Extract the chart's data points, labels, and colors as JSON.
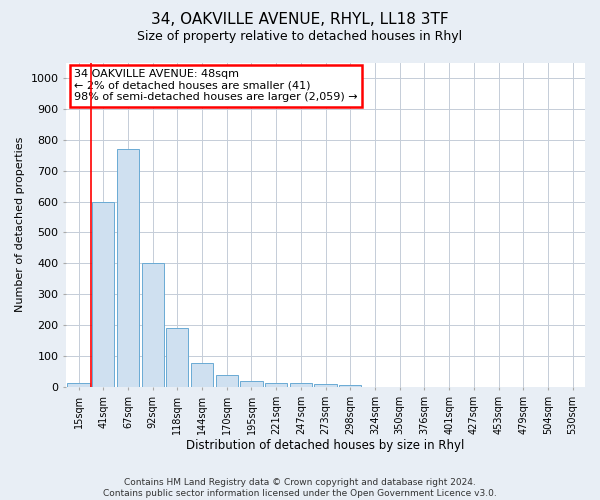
{
  "title": "34, OAKVILLE AVENUE, RHYL, LL18 3TF",
  "subtitle": "Size of property relative to detached houses in Rhyl",
  "xlabel": "Distribution of detached houses by size in Rhyl",
  "ylabel": "Number of detached properties",
  "bar_color": "#cfe0f0",
  "bar_edge_color": "#6aaad4",
  "categories": [
    "15sqm",
    "41sqm",
    "67sqm",
    "92sqm",
    "118sqm",
    "144sqm",
    "170sqm",
    "195sqm",
    "221sqm",
    "247sqm",
    "273sqm",
    "298sqm",
    "324sqm",
    "350sqm",
    "376sqm",
    "401sqm",
    "427sqm",
    "453sqm",
    "479sqm",
    "504sqm",
    "530sqm"
  ],
  "values": [
    12,
    600,
    770,
    400,
    190,
    78,
    37,
    18,
    12,
    12,
    10,
    7,
    0,
    0,
    0,
    0,
    0,
    0,
    0,
    0,
    0
  ],
  "ylim": [
    0,
    1050
  ],
  "yticks": [
    0,
    100,
    200,
    300,
    400,
    500,
    600,
    700,
    800,
    900,
    1000
  ],
  "property_label": "34 OAKVILLE AVENUE: 48sqm",
  "annotation_line1": "← 2% of detached houses are smaller (41)",
  "annotation_line2": "98% of semi-detached houses are larger (2,059) →",
  "vline_x": 0.5,
  "bg_color": "#e8eef5",
  "plot_bg_color": "#ffffff",
  "grid_color": "#c5cdd8",
  "footer_line1": "Contains HM Land Registry data © Crown copyright and database right 2024.",
  "footer_line2": "Contains public sector information licensed under the Open Government Licence v3.0."
}
